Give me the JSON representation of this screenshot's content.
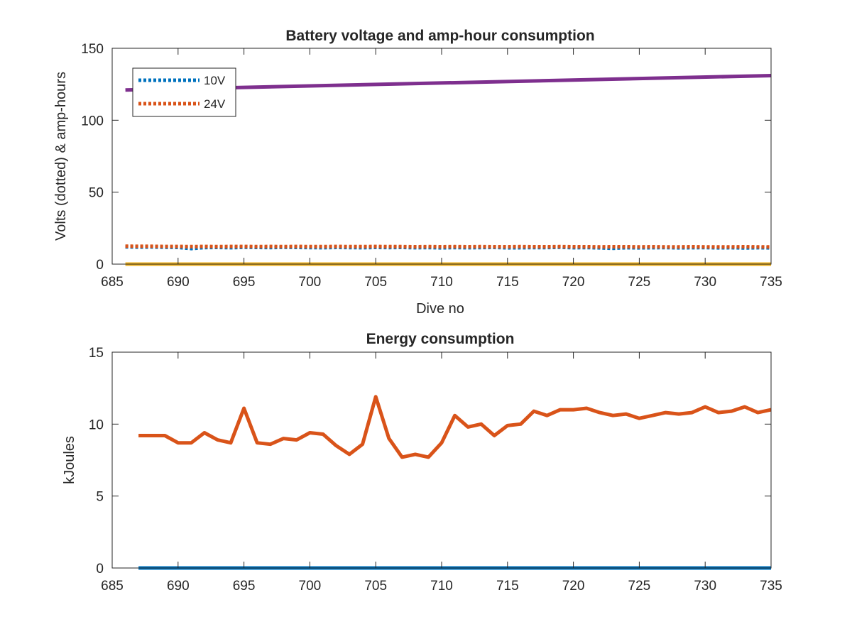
{
  "chart_data": [
    {
      "type": "line",
      "title": "Battery voltage and amp-hour consumption",
      "xlabel": "Dive no",
      "ylabel": "Volts (dotted) & amp-hours",
      "xlim": [
        685,
        735
      ],
      "ylim": [
        0,
        150
      ],
      "xticks": [
        685,
        690,
        695,
        700,
        705,
        710,
        715,
        720,
        725,
        730,
        735
      ],
      "yticks": [
        0,
        50,
        100,
        150
      ],
      "grid": false,
      "legend_position": "top-left",
      "series": [
        {
          "name": "10V",
          "style": "dotted",
          "color": "#0072BD",
          "x": [
            686,
            687,
            688,
            689,
            690,
            691,
            692,
            693,
            694,
            695,
            696,
            697,
            698,
            699,
            700,
            701,
            702,
            703,
            704,
            705,
            706,
            707,
            708,
            709,
            710,
            711,
            712,
            713,
            714,
            715,
            716,
            717,
            718,
            719,
            720,
            721,
            722,
            723,
            724,
            725,
            726,
            727,
            728,
            729,
            730,
            731,
            732,
            733,
            734,
            735
          ],
          "y": [
            12,
            11.8,
            11.9,
            11.7,
            11.6,
            10.8,
            11.5,
            11.6,
            11.4,
            11.7,
            11.6,
            11.5,
            11.7,
            11.6,
            11.5,
            11.4,
            11.6,
            11.5,
            11.4,
            11.6,
            11.5,
            11.6,
            11.4,
            11.5,
            11.3,
            11.5,
            11.4,
            11.5,
            11.6,
            11.3,
            11.4,
            11.5,
            11.5,
            11.7,
            11.4,
            11.5,
            11.3,
            11.0,
            11.4,
            11.3,
            11.4,
            11.5,
            11.3,
            11.4,
            11.5,
            11.3,
            11.4,
            11.2,
            11.4,
            11.3
          ]
        },
        {
          "name": "24V",
          "style": "dotted",
          "color": "#D95319",
          "x": [
            686,
            687,
            688,
            689,
            690,
            691,
            692,
            693,
            694,
            695,
            696,
            697,
            698,
            699,
            700,
            701,
            702,
            703,
            704,
            705,
            706,
            707,
            708,
            709,
            710,
            711,
            712,
            713,
            714,
            715,
            716,
            717,
            718,
            719,
            720,
            721,
            722,
            723,
            724,
            725,
            726,
            727,
            728,
            729,
            730,
            731,
            732,
            733,
            734,
            735
          ],
          "y": [
            12.5,
            12.4,
            12.4,
            12.3,
            12.3,
            12.2,
            12.3,
            12.2,
            12.3,
            12.3,
            12.2,
            12.3,
            12.2,
            12.3,
            12.2,
            12.2,
            12.3,
            12.2,
            12.2,
            12.3,
            12.2,
            12.2,
            12.1,
            12.2,
            12.1,
            12.2,
            12.1,
            12.2,
            12.1,
            12.1,
            12.2,
            12.1,
            12.1,
            12.2,
            12.1,
            12.1,
            12.0,
            12.1,
            12.1,
            12.0,
            12.1,
            12.0,
            12.0,
            12.1,
            12.0,
            12.0,
            12.0,
            12.1,
            12.0,
            12.0
          ]
        },
        {
          "style": "solid",
          "color": "#EDB120",
          "x": [
            686,
            735
          ],
          "y": [
            0,
            0
          ]
        },
        {
          "style": "solid",
          "color": "#7E2F8E",
          "x": [
            686,
            735
          ],
          "y": [
            121,
            131
          ]
        }
      ]
    },
    {
      "type": "line",
      "title": "Energy consumption",
      "xlabel": "",
      "ylabel": "kJoules",
      "xlim": [
        685,
        735
      ],
      "ylim": [
        0,
        15
      ],
      "xticks": [
        685,
        690,
        695,
        700,
        705,
        710,
        715,
        720,
        725,
        730,
        735
      ],
      "yticks": [
        0,
        5,
        10,
        15
      ],
      "grid": false,
      "series": [
        {
          "style": "solid",
          "color": "#D95319",
          "x": [
            687,
            688,
            689,
            690,
            691,
            692,
            693,
            694,
            695,
            696,
            697,
            698,
            699,
            700,
            701,
            702,
            703,
            704,
            705,
            706,
            707,
            708,
            709,
            710,
            711,
            712,
            713,
            714,
            715,
            716,
            717,
            718,
            719,
            720,
            721,
            722,
            723,
            724,
            725,
            726,
            727,
            728,
            729,
            730,
            731,
            732,
            733,
            734,
            735
          ],
          "y": [
            9.2,
            9.2,
            9.2,
            8.7,
            8.7,
            9.4,
            8.9,
            8.7,
            11.1,
            8.7,
            8.6,
            9.0,
            8.9,
            9.4,
            9.3,
            8.5,
            7.9,
            8.6,
            11.9,
            9.0,
            7.7,
            7.9,
            7.7,
            8.7,
            10.6,
            9.8,
            10.0,
            9.2,
            9.9,
            10.0,
            10.9,
            10.6,
            11.0,
            11.0,
            11.1,
            10.8,
            10.6,
            10.7,
            10.4,
            10.6,
            10.8,
            10.7,
            10.8,
            11.2,
            10.8,
            10.9,
            11.2,
            10.8,
            11.0
          ]
        },
        {
          "style": "solid",
          "color": "#0072BD",
          "x": [
            687,
            735
          ],
          "y": [
            0,
            0
          ]
        }
      ]
    }
  ]
}
